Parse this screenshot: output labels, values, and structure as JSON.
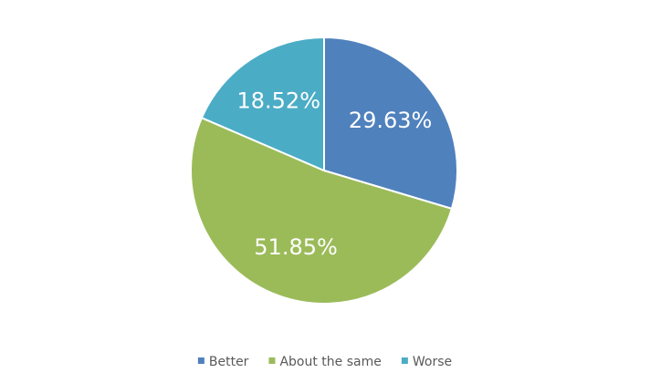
{
  "chart_data": {
    "type": "pie",
    "categories": [
      "Better",
      "About the same",
      "Worse"
    ],
    "values": [
      29.63,
      51.85,
      18.52
    ],
    "value_labels": [
      "29.63%",
      "51.85%",
      "18.52%"
    ],
    "colors": [
      "#4f81bd",
      "#9bbb59",
      "#4bacc6"
    ],
    "legend": "bottom"
  }
}
